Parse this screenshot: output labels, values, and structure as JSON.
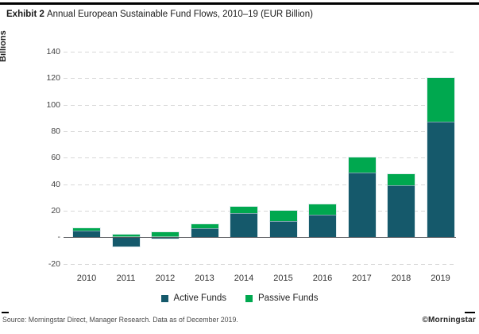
{
  "header": {
    "exhibit_label": "Exhibit 2",
    "title_rest": "Annual European Sustainable Fund Flows, 2010–19 (EUR Billion)"
  },
  "chart_data": {
    "type": "bar",
    "stacked": true,
    "title": "Annual European Sustainable Fund Flows, 2010–19 (EUR Billion)",
    "xlabel": "",
    "ylabel": "Billions",
    "categories": [
      "2010",
      "2011",
      "2012",
      "2013",
      "2014",
      "2015",
      "2016",
      "2017",
      "2018",
      "2019"
    ],
    "series": [
      {
        "name": "Active Funds",
        "color": "#15596B",
        "values": [
          5,
          -7,
          -1,
          6.5,
          18,
          12,
          17,
          48.5,
          39,
          87
        ]
      },
      {
        "name": "Passive Funds",
        "color": "#00A84F",
        "values": [
          2,
          2,
          4,
          3,
          5,
          8,
          7.5,
          11.5,
          8.5,
          33
        ]
      }
    ],
    "ylim": [
      -20,
      140
    ],
    "y_ticks": [
      {
        "value": 140,
        "label": "140"
      },
      {
        "value": 120,
        "label": "120"
      },
      {
        "value": 100,
        "label": "100"
      },
      {
        "value": 80,
        "label": "80"
      },
      {
        "value": 60,
        "label": "60"
      },
      {
        "value": 40,
        "label": "40"
      },
      {
        "value": 20,
        "label": "20"
      },
      {
        "value": 0,
        "label": "-"
      },
      {
        "value": -20,
        "label": "-20"
      }
    ],
    "grid": "horizontal-dashed",
    "legend_position": "bottom"
  },
  "footer": {
    "source": "Source: Morningstar Direct, Manager Research. Data as of December 2019.",
    "logo": "©Morningstar"
  }
}
